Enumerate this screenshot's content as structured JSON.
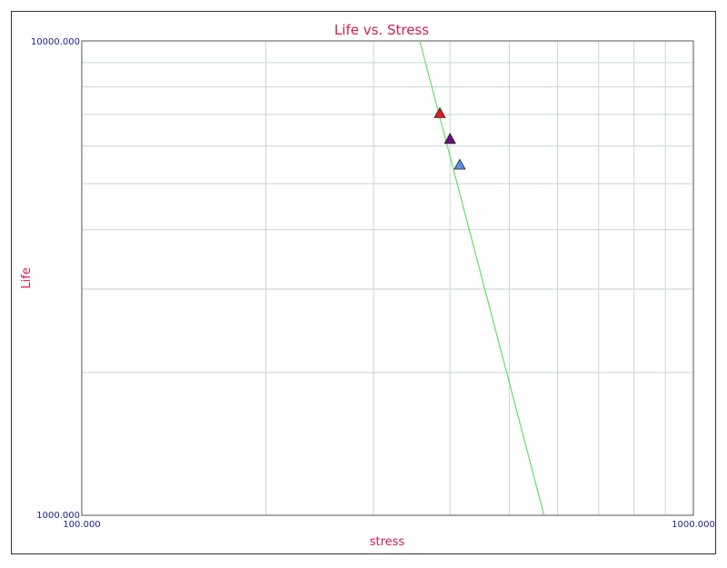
{
  "chart_data": {
    "type": "scatter",
    "title": "Life vs. Stress",
    "xlabel": "stress",
    "ylabel": "Life",
    "xscale": "log",
    "yscale": "log",
    "xlim": [
      100,
      1000
    ],
    "ylim": [
      1000,
      10000
    ],
    "x_tick_labels": [
      "100.000",
      "1000.000"
    ],
    "y_tick_labels": [
      "1000.000",
      "10000.000"
    ],
    "grid": true,
    "points": [
      {
        "x": 385,
        "y": 7040,
        "color": "#e31a1c",
        "marker": "triangle"
      },
      {
        "x": 400,
        "y": 6210,
        "color": "#6a0d83",
        "marker": "triangle"
      },
      {
        "x": 415,
        "y": 5480,
        "color": "#5b8fe8",
        "marker": "triangle"
      }
    ],
    "fit_line": {
      "color": "#66dd66",
      "points": [
        [
          357,
          10000
        ],
        [
          570,
          1000
        ]
      ]
    }
  }
}
